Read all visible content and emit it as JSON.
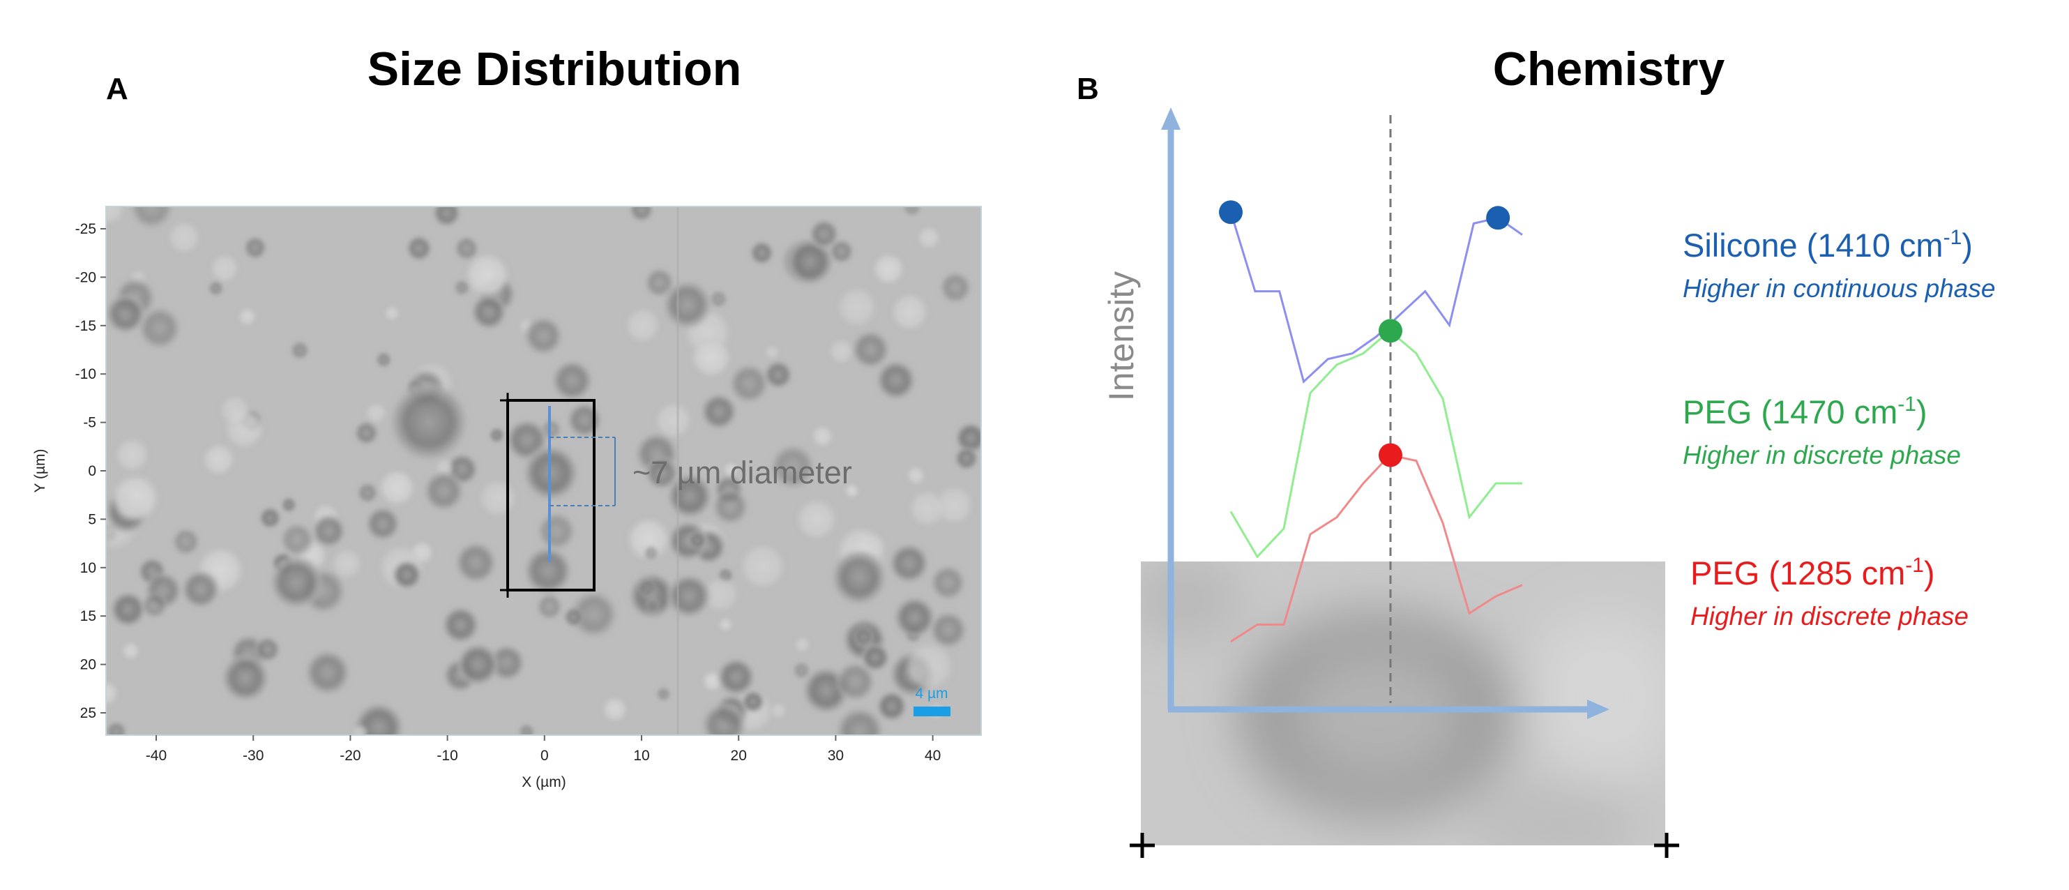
{
  "panel_a": {
    "letter": "A",
    "title": "Size Distribution",
    "x_axis_title": "X (µm)",
    "y_axis_title": "Y (µm)",
    "x_ticks": [
      "-40",
      "-30",
      "-20",
      "-10",
      "0",
      "10",
      "20",
      "30",
      "40"
    ],
    "y_ticks": [
      "-25",
      "-20",
      "-15",
      "-10",
      "-5",
      "0",
      "5",
      "10",
      "15",
      "20",
      "25"
    ],
    "annotation": "~7 µm diameter",
    "scale_bar_label": "4 µm",
    "colors": {
      "annotation": "#6d6d6d",
      "scale_bar": "#1a9ee6",
      "profile_line": "#5b8fd6"
    }
  },
  "panel_b": {
    "letter": "B",
    "title": "Chemistry",
    "y_axis_label": "Intensity",
    "colors": {
      "axis": "#8fb3dc"
    },
    "legend": [
      {
        "title": "Silicone (1410 cm",
        "superscript": "-1",
        "close": ")",
        "subtitle": "Higher in continuous phase",
        "color": "#1b5fb1"
      },
      {
        "title": "PEG (1470 cm",
        "superscript": "-1",
        "close": ")",
        "subtitle": "Higher in discrete phase",
        "color": "#2ea84e"
      },
      {
        "title": "PEG (1285 cm",
        "superscript": "-1",
        "close": ")",
        "subtitle": "Higher in discrete phase",
        "color": "#e81c1c"
      }
    ],
    "traces": [
      {
        "name": "silicone-trace",
        "color": "#8c8ef0",
        "marker_color": "#1b5fb1",
        "values": [
          0.88,
          0.74,
          0.74,
          0.58,
          0.62,
          0.63,
          0.66,
          0.7,
          0.74,
          0.68,
          0.86,
          0.87,
          0.84
        ]
      },
      {
        "name": "peg-1470-trace",
        "color": "#90ee90",
        "marker_color": "#2ea84e",
        "values": [
          0.35,
          0.27,
          0.32,
          0.56,
          0.61,
          0.63,
          0.67,
          0.63,
          0.55,
          0.34,
          0.4,
          0.4
        ]
      },
      {
        "name": "peg-1285-trace",
        "color": "#f08a8a",
        "marker_color": "#e81c1c",
        "values": [
          0.12,
          0.15,
          0.15,
          0.31,
          0.34,
          0.4,
          0.45,
          0.44,
          0.33,
          0.17,
          0.2,
          0.22
        ]
      }
    ]
  }
}
